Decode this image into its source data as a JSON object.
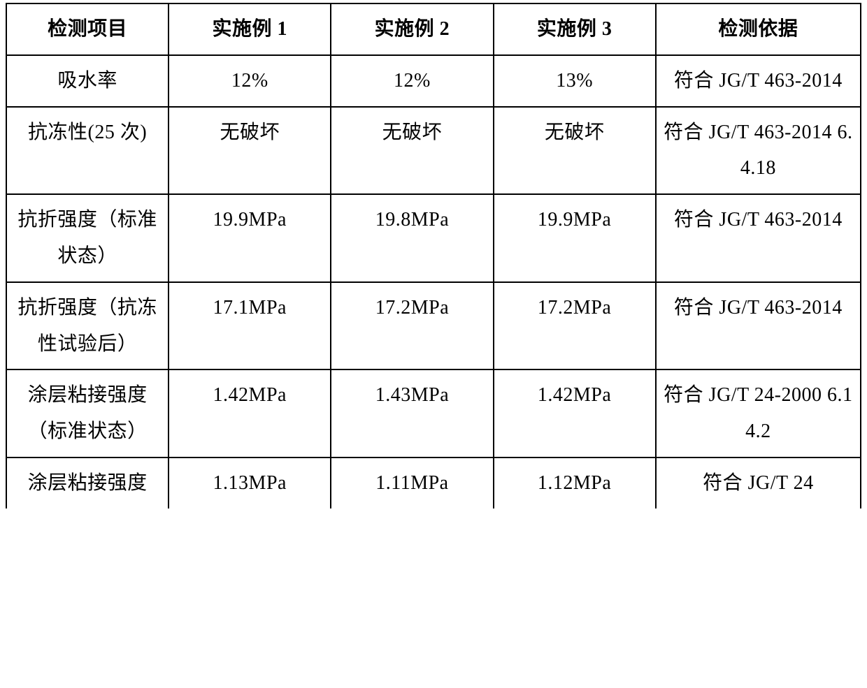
{
  "table": {
    "font_family": "SimSun/FangSong serif",
    "font_size_pt": 21,
    "border_color": "#000000",
    "background_color": "#ffffff",
    "columns": [
      {
        "key": "item",
        "label": "检测项目",
        "width_pct": 19
      },
      {
        "key": "ex1",
        "label": "实施例 1",
        "width_pct": 19
      },
      {
        "key": "ex2",
        "label": "实施例 2",
        "width_pct": 19
      },
      {
        "key": "ex3",
        "label": "实施例 3",
        "width_pct": 19
      },
      {
        "key": "basis",
        "label": "检测依据",
        "width_pct": 24
      }
    ],
    "rows": [
      {
        "item": "吸水率",
        "ex1": "12%",
        "ex2": "12%",
        "ex3": "13%",
        "basis": "符合 JG/T 463-2014"
      },
      {
        "item": "抗冻性(25 次)",
        "ex1": "无破坏",
        "ex2": "无破坏",
        "ex3": "无破坏",
        "basis": "符合 JG/T 463-2014 6.4.18"
      },
      {
        "item": "抗折强度（标准状态）",
        "ex1": "19.9MPa",
        "ex2": "19.8MPa",
        "ex3": "19.9MPa",
        "basis": "符合 JG/T 463-2014"
      },
      {
        "item": "抗折强度（抗冻性试验后）",
        "ex1": "17.1MPa",
        "ex2": "17.2MPa",
        "ex3": "17.2MPa",
        "basis": "符合 JG/T 463-2014"
      },
      {
        "item": "涂层粘接强度（标准状态）",
        "ex1": "1.42MPa",
        "ex2": "1.43MPa",
        "ex3": "1.42MPa",
        "basis": "符合 JG/T 24-2000 6.14.2"
      },
      {
        "item": "涂层粘接强度",
        "ex1": "1.13MPa",
        "ex2": "1.11MPa",
        "ex3": "1.12MPa",
        "basis": "符合 JG/T 24"
      }
    ]
  }
}
